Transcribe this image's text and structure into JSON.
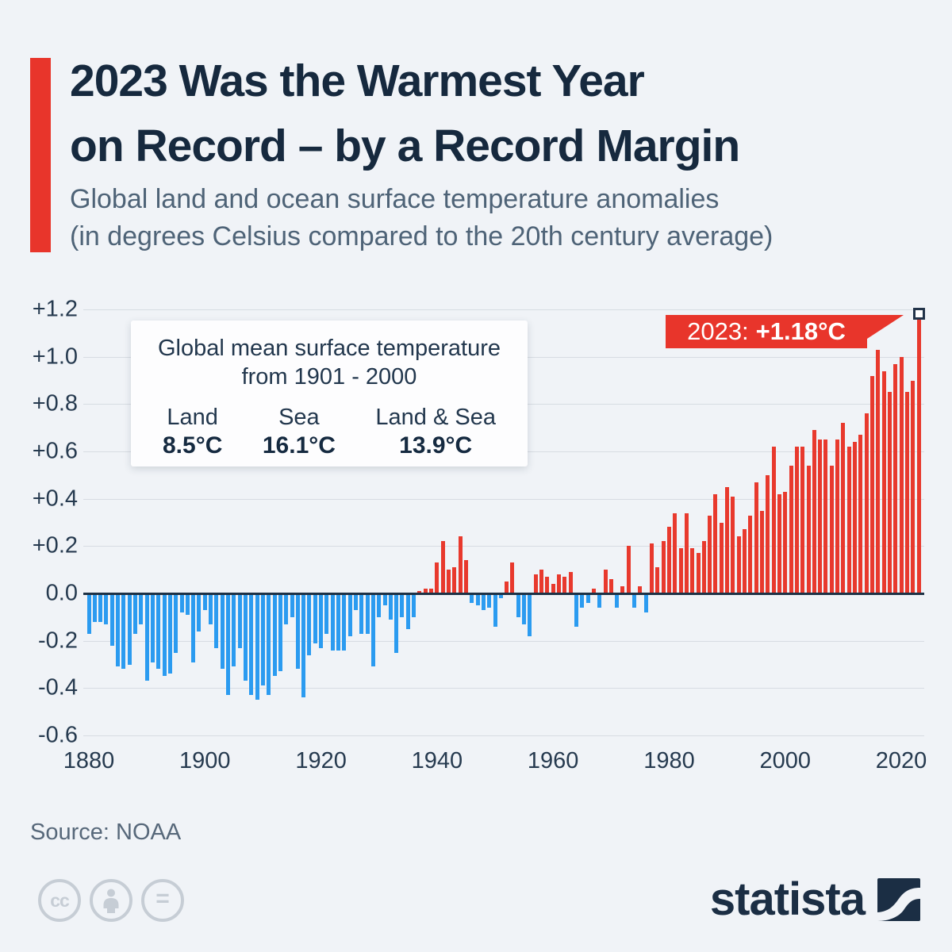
{
  "header": {
    "title_line1": "2023 Was the Warmest Year",
    "title_line2": "on Record – by a Record Margin",
    "subtitle_line1": "Global land and ocean surface temperature anomalies",
    "subtitle_line2": "(in degrees Celsius compared to the 20th century average)",
    "accent_color": "#e8352b"
  },
  "info_box": {
    "title_line1": "Global mean surface temperature",
    "title_line2": "from 1901 - 2000",
    "stats": [
      {
        "label": "Land",
        "value": "8.5°C"
      },
      {
        "label": "Sea",
        "value": "16.1°C"
      },
      {
        "label": "Land & Sea",
        "value": "13.9°C"
      }
    ]
  },
  "callout": {
    "label": "2023:",
    "value": "+1.18°C",
    "color": "#e8352b",
    "marker_year": 2023
  },
  "chart_data": {
    "type": "bar",
    "title": "Global land and ocean surface temperature anomalies (°C, compared to the 20th century average)",
    "start_year": 1880,
    "end_year": 2023,
    "ylim": [
      -0.6,
      1.2
    ],
    "grid": true,
    "positive_color": "#e8392d",
    "negative_color": "#2b9bf0",
    "yticks": [
      {
        "value": 1.2,
        "label": "+1.2"
      },
      {
        "value": 1.0,
        "label": "+1.0"
      },
      {
        "value": 0.8,
        "label": "+0.8"
      },
      {
        "value": 0.6,
        "label": "+0.6"
      },
      {
        "value": 0.4,
        "label": "+0.4"
      },
      {
        "value": 0.2,
        "label": "+0.2"
      },
      {
        "value": 0.0,
        "label": "0.0"
      },
      {
        "value": -0.2,
        "label": "-0.2"
      },
      {
        "value": -0.4,
        "label": "-0.4"
      },
      {
        "value": -0.6,
        "label": "-0.6"
      }
    ],
    "xticks": [
      {
        "value": 1880,
        "label": "1880"
      },
      {
        "value": 1900,
        "label": "1900"
      },
      {
        "value": 1920,
        "label": "1920"
      },
      {
        "value": 1940,
        "label": "1940"
      },
      {
        "value": 1960,
        "label": "1960"
      },
      {
        "value": 1980,
        "label": "1980"
      },
      {
        "value": 2000,
        "label": "2000"
      },
      {
        "value": 2020,
        "label": "2020"
      }
    ],
    "values": [
      -0.17,
      -0.12,
      -0.12,
      -0.13,
      -0.22,
      -0.31,
      -0.32,
      -0.3,
      -0.17,
      -0.13,
      -0.37,
      -0.29,
      -0.32,
      -0.35,
      -0.34,
      -0.25,
      -0.08,
      -0.09,
      -0.29,
      -0.16,
      -0.07,
      -0.13,
      -0.23,
      -0.32,
      -0.43,
      -0.31,
      -0.23,
      -0.37,
      -0.43,
      -0.45,
      -0.39,
      -0.43,
      -0.35,
      -0.33,
      -0.13,
      -0.1,
      -0.32,
      -0.44,
      -0.26,
      -0.21,
      -0.23,
      -0.17,
      -0.24,
      -0.24,
      -0.24,
      -0.18,
      -0.07,
      -0.17,
      -0.17,
      -0.31,
      -0.1,
      -0.05,
      -0.11,
      -0.25,
      -0.1,
      -0.15,
      -0.1,
      0.01,
      0.02,
      0.02,
      0.13,
      0.22,
      0.1,
      0.11,
      0.24,
      0.14,
      -0.04,
      -0.05,
      -0.07,
      -0.06,
      -0.14,
      -0.02,
      0.05,
      0.13,
      -0.1,
      -0.13,
      -0.18,
      0.08,
      0.1,
      0.07,
      0.04,
      0.08,
      0.07,
      0.09,
      -0.14,
      -0.06,
      -0.04,
      0.02,
      -0.06,
      0.1,
      0.06,
      -0.06,
      0.03,
      0.2,
      -0.06,
      0.03,
      -0.08,
      0.21,
      0.11,
      0.22,
      0.28,
      0.34,
      0.19,
      0.34,
      0.19,
      0.17,
      0.22,
      0.33,
      0.42,
      0.3,
      0.45,
      0.41,
      0.24,
      0.27,
      0.33,
      0.47,
      0.35,
      0.5,
      0.62,
      0.42,
      0.43,
      0.54,
      0.62,
      0.62,
      0.54,
      0.69,
      0.65,
      0.65,
      0.54,
      0.65,
      0.72,
      0.62,
      0.64,
      0.67,
      0.76,
      0.92,
      1.03,
      0.94,
      0.85,
      0.97,
      1.0,
      0.85,
      0.9,
      1.18
    ],
    "highlight": {
      "year": 2023,
      "value": 1.18
    }
  },
  "footer": {
    "source": "Source: NOAA",
    "brand": "statista",
    "license_icons": [
      "cc-icon",
      "person-icon",
      "equals-icon"
    ]
  }
}
